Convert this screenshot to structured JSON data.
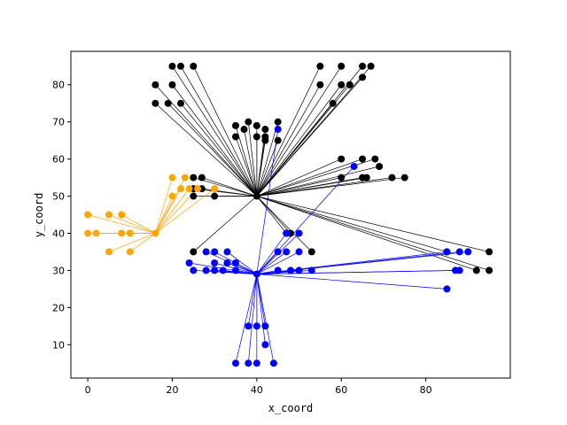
{
  "chart_data": {
    "type": "scatter",
    "xlabel": "x_coord",
    "ylabel": "y_coord",
    "xlim": [
      -4,
      100
    ],
    "ylim": [
      1,
      89
    ],
    "xticks": [
      0,
      20,
      40,
      60,
      80
    ],
    "yticks": [
      10,
      20,
      30,
      40,
      50,
      60,
      70,
      80
    ],
    "grid": false,
    "series": [
      {
        "color": "#000000",
        "depot": [
          40,
          50
        ],
        "points": [
          [
            20,
            85
          ],
          [
            22,
            85
          ],
          [
            25,
            85
          ],
          [
            55,
            85
          ],
          [
            60,
            85
          ],
          [
            65,
            85
          ],
          [
            67,
            85
          ],
          [
            16,
            80
          ],
          [
            20,
            80
          ],
          [
            55,
            80
          ],
          [
            60,
            80
          ],
          [
            62,
            80
          ],
          [
            65,
            82
          ],
          [
            16,
            75
          ],
          [
            19,
            75
          ],
          [
            22,
            75
          ],
          [
            58,
            75
          ],
          [
            35,
            69
          ],
          [
            38,
            70
          ],
          [
            40,
            69
          ],
          [
            37,
            68
          ],
          [
            40,
            66
          ],
          [
            42,
            65
          ],
          [
            42,
            66
          ],
          [
            42,
            68
          ],
          [
            45,
            70
          ],
          [
            45,
            65
          ],
          [
            35,
            66
          ],
          [
            60,
            60
          ],
          [
            65,
            60
          ],
          [
            68,
            60
          ],
          [
            69,
            58
          ],
          [
            65,
            55
          ],
          [
            66,
            55
          ],
          [
            60,
            55
          ],
          [
            72,
            55
          ],
          [
            75,
            55
          ],
          [
            25,
            55
          ],
          [
            27,
            55
          ],
          [
            25,
            52
          ],
          [
            27,
            52
          ],
          [
            25,
            50
          ],
          [
            30,
            50
          ],
          [
            48,
            40
          ],
          [
            47,
            40
          ],
          [
            53,
            35
          ],
          [
            25,
            35
          ],
          [
            85,
            35
          ],
          [
            95,
            35
          ],
          [
            92,
            30
          ],
          [
            95,
            30
          ]
        ]
      },
      {
        "color": "#0000ff",
        "depot": [
          40,
          29
        ],
        "points": [
          [
            45,
            68
          ],
          [
            63,
            58
          ],
          [
            47,
            40
          ],
          [
            50,
            40
          ],
          [
            28,
            35
          ],
          [
            30,
            35
          ],
          [
            33,
            35
          ],
          [
            45,
            35
          ],
          [
            47,
            35
          ],
          [
            50,
            35
          ],
          [
            24,
            32
          ],
          [
            30,
            32
          ],
          [
            33,
            32
          ],
          [
            35,
            32
          ],
          [
            25,
            30
          ],
          [
            28,
            30
          ],
          [
            30,
            30
          ],
          [
            32,
            30
          ],
          [
            35,
            30
          ],
          [
            45,
            30
          ],
          [
            48,
            30
          ],
          [
            50,
            30
          ],
          [
            53,
            30
          ],
          [
            85,
            35
          ],
          [
            88,
            35
          ],
          [
            90,
            35
          ],
          [
            87,
            30
          ],
          [
            88,
            30
          ],
          [
            85,
            25
          ],
          [
            38,
            15
          ],
          [
            40,
            15
          ],
          [
            42,
            15
          ],
          [
            42,
            10
          ],
          [
            35,
            5
          ],
          [
            38,
            5
          ],
          [
            40,
            5
          ],
          [
            44,
            5
          ]
        ]
      },
      {
        "color": "#ffa500",
        "depot": [
          16,
          40
        ],
        "points": [
          [
            20,
            55
          ],
          [
            23,
            55
          ],
          [
            22,
            52
          ],
          [
            24,
            52
          ],
          [
            26,
            52
          ],
          [
            30,
            52
          ],
          [
            20,
            50
          ],
          [
            0,
            45
          ],
          [
            5,
            45
          ],
          [
            8,
            45
          ],
          [
            0,
            40
          ],
          [
            2,
            40
          ],
          [
            8,
            40
          ],
          [
            10,
            40
          ],
          [
            5,
            35
          ],
          [
            10,
            35
          ]
        ]
      }
    ]
  }
}
